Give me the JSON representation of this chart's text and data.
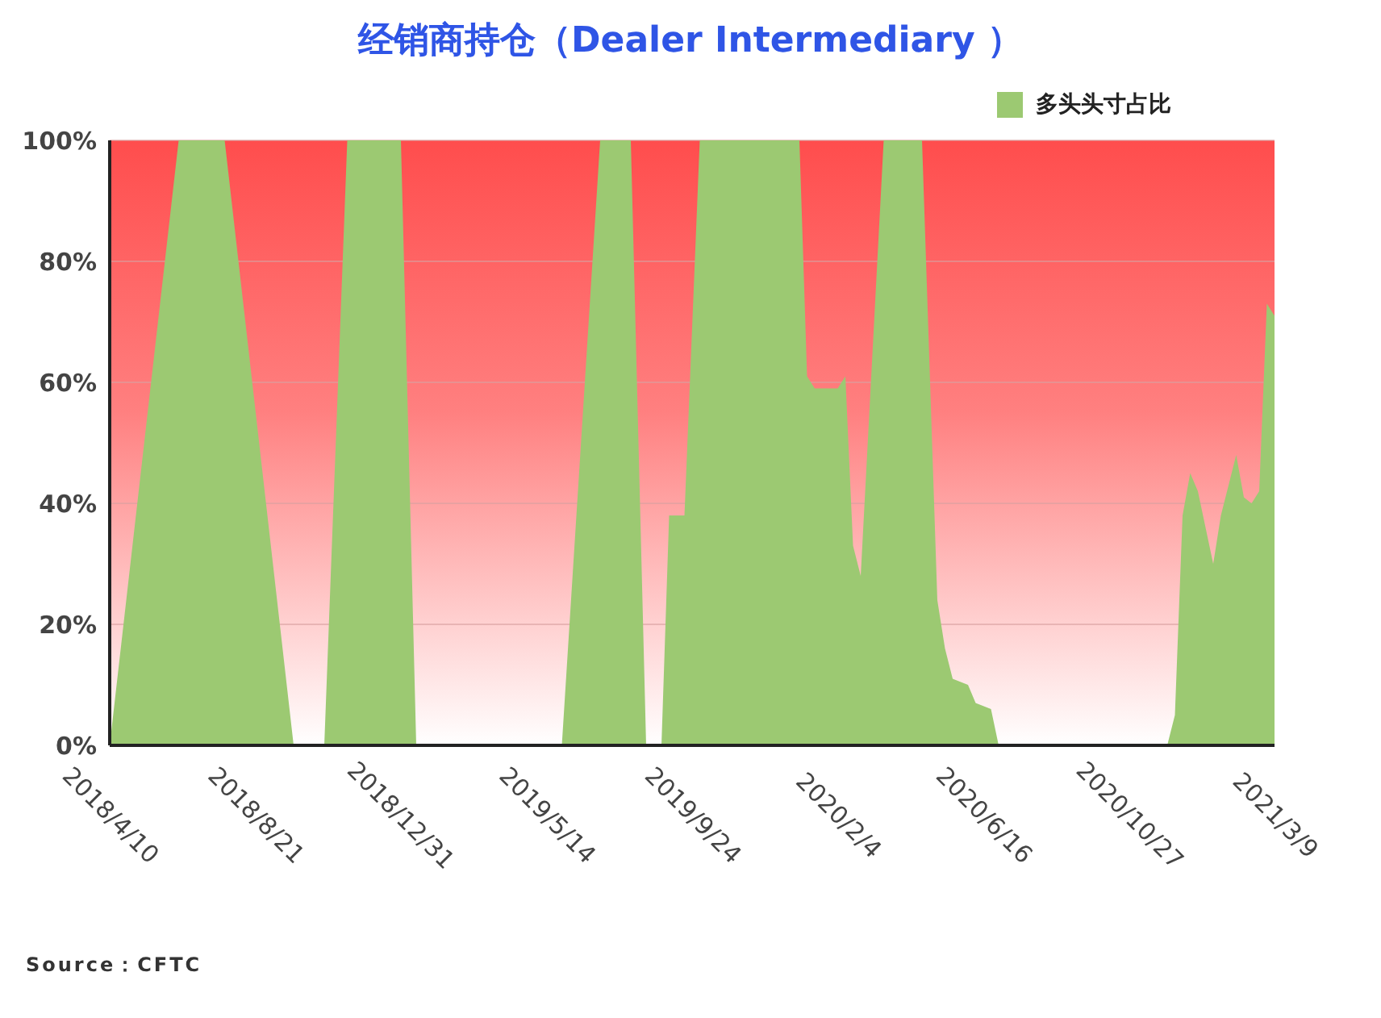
{
  "chart_data": {
    "type": "area",
    "title": "经销商持仓（Dealer Intermediary ）",
    "annotations": [
      "Source：CFTC"
    ],
    "x": [
      "2018-04-10",
      "2018-06-12",
      "2018-07-24",
      "2018-09-25",
      "2018-10-23",
      "2018-11-13",
      "2019-01-01",
      "2019-01-15",
      "2019-05-28",
      "2019-07-02",
      "2019-07-30",
      "2019-08-13",
      "2019-08-27",
      "2019-09-03",
      "2019-09-17",
      "2019-10-01",
      "2019-12-31",
      "2020-01-07",
      "2020-01-14",
      "2020-02-04",
      "2020-02-11",
      "2020-02-18",
      "2020-02-25",
      "2020-03-17",
      "2020-04-21",
      "2020-05-05",
      "2020-05-12",
      "2020-05-19",
      "2020-06-02",
      "2020-06-09",
      "2020-06-23",
      "2020-06-30",
      "2020-12-01",
      "2020-12-08",
      "2020-12-15",
      "2020-12-22",
      "2020-12-29",
      "2021-01-12",
      "2021-01-19",
      "2021-02-02",
      "2021-02-09",
      "2021-02-16",
      "2021-02-23",
      "2021-03-02",
      "2021-03-09"
    ],
    "series": [
      {
        "name": "多头头寸占比",
        "color": "#9cc972",
        "values": [
          0,
          100,
          100,
          0,
          0,
          100,
          100,
          0,
          0,
          100,
          100,
          0,
          0,
          38,
          38,
          100,
          100,
          61,
          59,
          59,
          61,
          33,
          28,
          100,
          100,
          24,
          16,
          11,
          10,
          7,
          6,
          0,
          0,
          5,
          38,
          45,
          42,
          30,
          38,
          48,
          41,
          40,
          42,
          73,
          71
        ]
      }
    ],
    "xlim": [
      "2018-04-10",
      "2021-03-09"
    ],
    "xticks": [
      {
        "value": "2018-04-10",
        "label": "2018/4/10"
      },
      {
        "value": "2018-08-21",
        "label": "2018/8/21"
      },
      {
        "value": "2018-12-31",
        "label": "2018/12/31"
      },
      {
        "value": "2019-05-14",
        "label": "2019/5/14"
      },
      {
        "value": "2019-09-24",
        "label": "2019/9/24"
      },
      {
        "value": "2020-02-04",
        "label": "2020/2/4"
      },
      {
        "value": "2020-06-16",
        "label": "2020/6/16"
      },
      {
        "value": "2020-10-27",
        "label": "2020/10/27"
      },
      {
        "value": "2021-03-09",
        "label": "2021/3/9"
      }
    ],
    "ylim": [
      0,
      100
    ],
    "yticks": [
      {
        "value": 0,
        "label": "0%"
      },
      {
        "value": 20,
        "label": "20%"
      },
      {
        "value": 40,
        "label": "40%"
      },
      {
        "value": 60,
        "label": "60%"
      },
      {
        "value": 80,
        "label": "80%"
      },
      {
        "value": 100,
        "label": "100%"
      }
    ],
    "grid": "y",
    "legend": "top right"
  }
}
